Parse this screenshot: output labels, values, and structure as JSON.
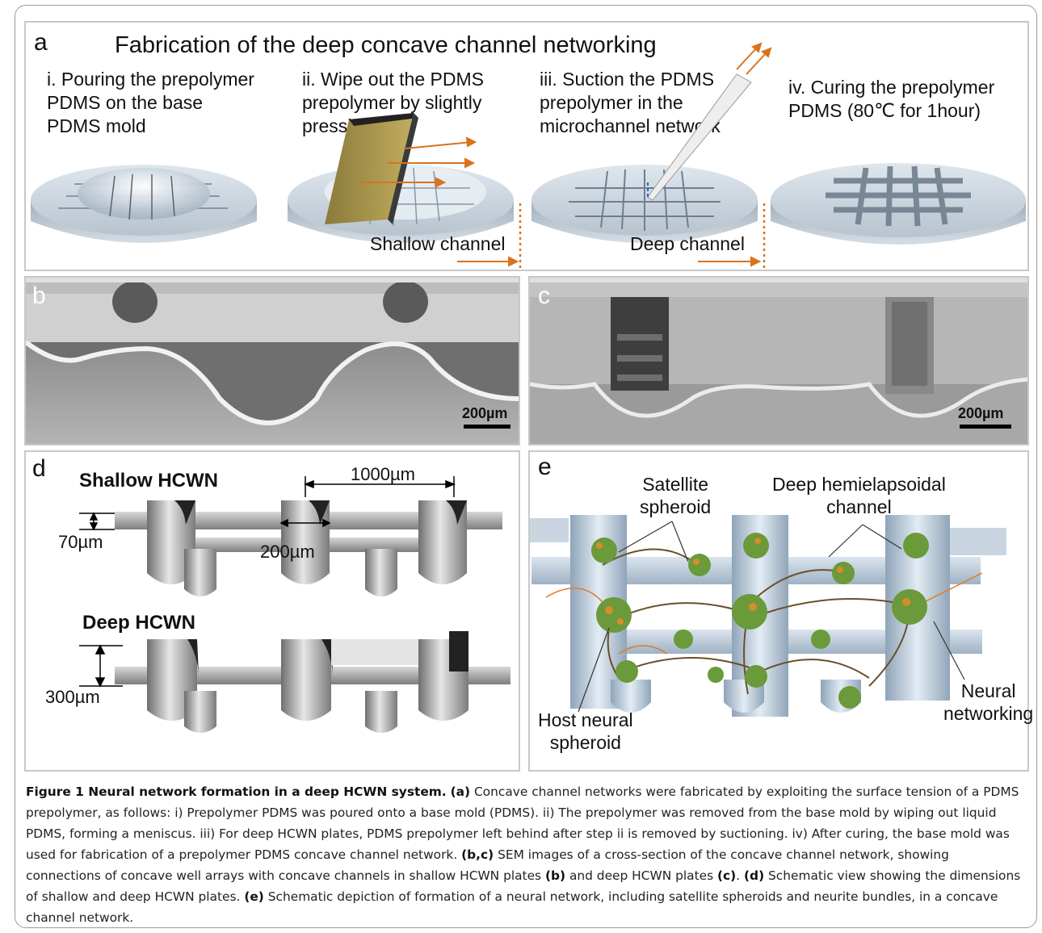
{
  "panel_a": {
    "label": "a",
    "title": "Fabrication of the deep concave channel networking",
    "steps": [
      "i. Pouring the prepolymer\nPDMS on the base\nPDMS mold",
      "ii. Wipe out the PDMS\nprepolymer by slightly\npressing",
      "iii. Suction the PDMS\nprepolymer in the\nmicrochannel  network",
      "iv. Curing the prepolymer\nPDMS (80℃ for 1hour)"
    ],
    "shallow_label": "Shallow channel",
    "deep_label": "Deep channel"
  },
  "panel_b": {
    "label": "b",
    "scale": "200µm"
  },
  "panel_c": {
    "label": "c",
    "scale": "200µm"
  },
  "panel_d": {
    "label": "d",
    "shallow_title": "Shallow HCWN",
    "deep_title": "Deep HCWN",
    "dim_pitch": "1000µm",
    "dim_shallow_depth": "70µm",
    "dim_width": "200µm",
    "dim_deep_depth": "300µm"
  },
  "panel_e": {
    "label": "e",
    "satellite": "Satellite\nspheroid",
    "deep_channel": "Deep hemielapsoidal\nchannel",
    "neural_networking": "Neural\nnetworking",
    "host": "Host neural\nspheroid"
  },
  "caption": {
    "title": "Figure 1 Neural network formation in a deep HCWN system.",
    "a_ref": "(a)",
    "a_text": " Concave channel networks were fabricated by exploiting the surface tension of a PDMS prepolymer, as follows: i) Prepolymer PDMS was poured onto a base mold (PDMS). ii) The prepolymer was removed from the base mold by wiping out liquid PDMS, forming a meniscus. iii) For deep HCWN plates, PDMS prepolymer left behind after step ii is removed by suctioning. iv) After curing, the base mold was used for fabrication of a prepolymer PDMS concave channel network. ",
    "bc_ref": "(b,c)",
    "bc_text": " SEM images of a cross-section of the concave channel network, showing connections of concave well arrays with concave channels in shallow HCWN plates ",
    "b_ref": "(b)",
    "b_text": " and deep HCWN plates ",
    "c_ref": "(c)",
    "c_text": ". ",
    "d_ref": "(d)",
    "d_text": " Schematic view showing the dimensions of shallow and deep HCWN plates. ",
    "e_ref": "(e)",
    "e_text": " Schematic depiction of formation of a neural network, including satellite spheroids and neurite bundles, in a concave channel network."
  },
  "colors": {
    "arrow": "#d9731f",
    "frame": "#9a9a9a",
    "panel_border": "#c8c8c8",
    "pdms": "#c9d3dc"
  }
}
